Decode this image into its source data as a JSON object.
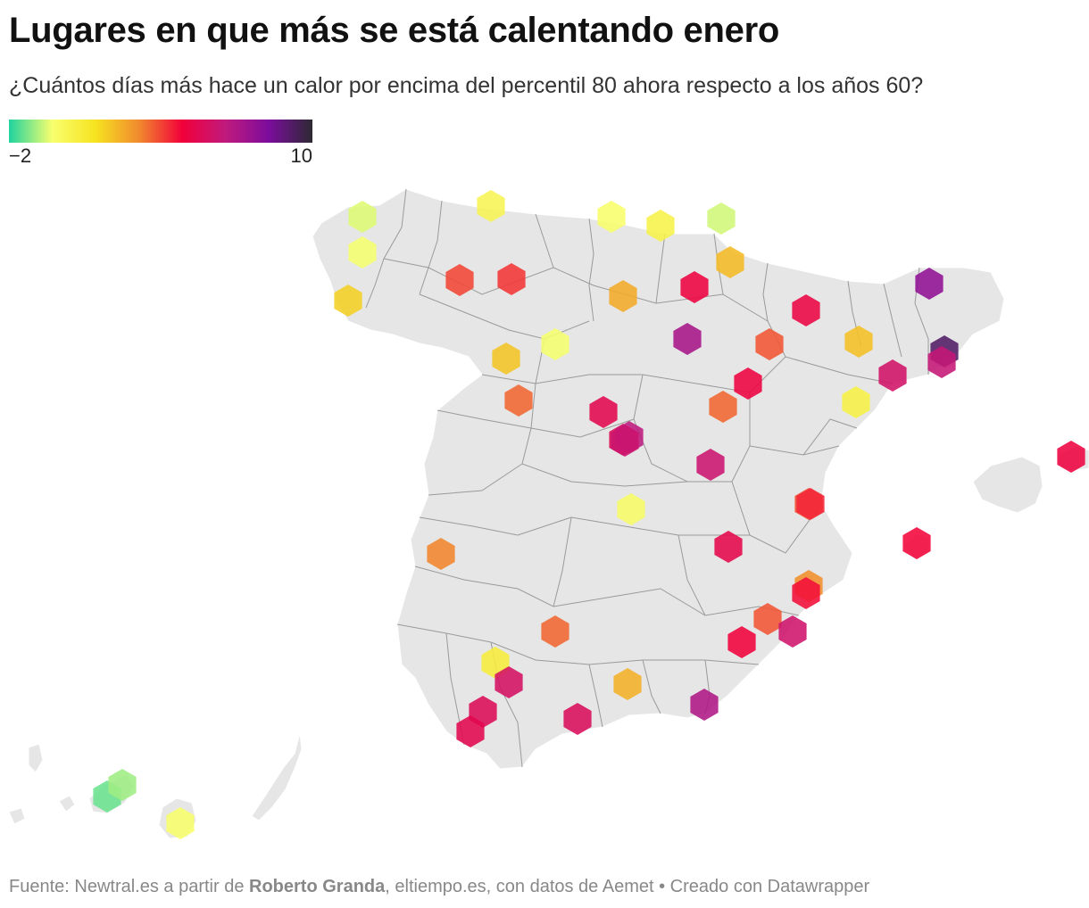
{
  "title": "Lugares en que más se está calentando enero",
  "subtitle": "¿Cuántos días más hace un calor por encima del percentil 80 ahora respecto a los años 60?",
  "legend": {
    "min_label": "−2",
    "max_label": "10",
    "min": -2,
    "max": 10,
    "gradient": [
      "#1fd3a0",
      "#f8ff6e",
      "#f6e320",
      "#f18a2e",
      "#f2003a",
      "#c01a7d",
      "#7b0c9c",
      "#2d2a33"
    ]
  },
  "colors": {
    "land": "#e6e6e6",
    "borders": "#9a9a9a"
  },
  "footer": {
    "prefix": "Fuente: Newtral.es a partir de ",
    "author": "Roberto Granda",
    "suffix": ", eltiempo.es, con datos de Aemet • Creado con Datawrapper"
  },
  "stations": [
    {
      "id": "a-coruna",
      "value": -0.5
    },
    {
      "id": "santiago",
      "value": -0.3
    },
    {
      "id": "ourense",
      "value": 1.8
    },
    {
      "id": "oviedo",
      "value": 0.3
    },
    {
      "id": "santander",
      "value": -0.2
    },
    {
      "id": "bilbao",
      "value": 0.5
    },
    {
      "id": "san-sebastian",
      "value": -0.6
    },
    {
      "id": "vitoria",
      "value": 2.2
    },
    {
      "id": "leon",
      "value": 4.2
    },
    {
      "id": "ponferrada",
      "value": 4.0
    },
    {
      "id": "burgos",
      "value": 2.5
    },
    {
      "id": "logrono",
      "value": 5.0
    },
    {
      "id": "pamplona",
      "value": 5.1
    },
    {
      "id": "valladolid",
      "value": -0.3
    },
    {
      "id": "zamora",
      "value": 2.0
    },
    {
      "id": "soria",
      "value": 7.2
    },
    {
      "id": "huesca",
      "value": 2.1
    },
    {
      "id": "lleida",
      "value": 6.0
    },
    {
      "id": "girona",
      "value": 7.8
    },
    {
      "id": "barcelona",
      "value": 9.2
    },
    {
      "id": "barcelona-aeropuerto",
      "value": 6.4
    },
    {
      "id": "zaragoza",
      "value": 3.8
    },
    {
      "id": "salamanca",
      "value": 3.6
    },
    {
      "id": "segovia",
      "value": 5.4
    },
    {
      "id": "calatayud",
      "value": 5.0
    },
    {
      "id": "tortosa",
      "value": 0.6
    },
    {
      "id": "madrid-retiro",
      "value": 5.6
    },
    {
      "id": "madrid-barajas",
      "value": 6.6
    },
    {
      "id": "getafe",
      "value": 6.2
    },
    {
      "id": "molina",
      "value": 3.6
    },
    {
      "id": "cuenca",
      "value": 6.2
    },
    {
      "id": "palma",
      "value": 4.8
    },
    {
      "id": "menorca",
      "value": 5.0
    },
    {
      "id": "valencia",
      "value": 3.9
    },
    {
      "id": "valencia-aeropuerto",
      "value": 4.4
    },
    {
      "id": "albacete",
      "value": 5.3
    },
    {
      "id": "toledo",
      "value": -0.1
    },
    {
      "id": "badajoz",
      "value": 3.2
    },
    {
      "id": "cordoba",
      "value": 3.6
    },
    {
      "id": "alicante",
      "value": 3.0
    },
    {
      "id": "alicante-aeropuerto",
      "value": 4.7
    },
    {
      "id": "murcia",
      "value": 3.8
    },
    {
      "id": "murcia-alcantarilla",
      "value": 4.9
    },
    {
      "id": "cartagena",
      "value": 6.1
    },
    {
      "id": "sevilla",
      "value": 0.8
    },
    {
      "id": "moron",
      "value": 5.9
    },
    {
      "id": "granada",
      "value": 2.4
    },
    {
      "id": "almeria",
      "value": 7.0
    },
    {
      "id": "malaga",
      "value": 5.7
    },
    {
      "id": "jerez",
      "value": 5.6
    },
    {
      "id": "cadiz",
      "value": 5.4
    },
    {
      "id": "tenerife-norte",
      "value": -1.4
    },
    {
      "id": "tenerife-sur",
      "value": -1.0
    },
    {
      "id": "gran-canaria",
      "value": -0.2
    }
  ]
}
